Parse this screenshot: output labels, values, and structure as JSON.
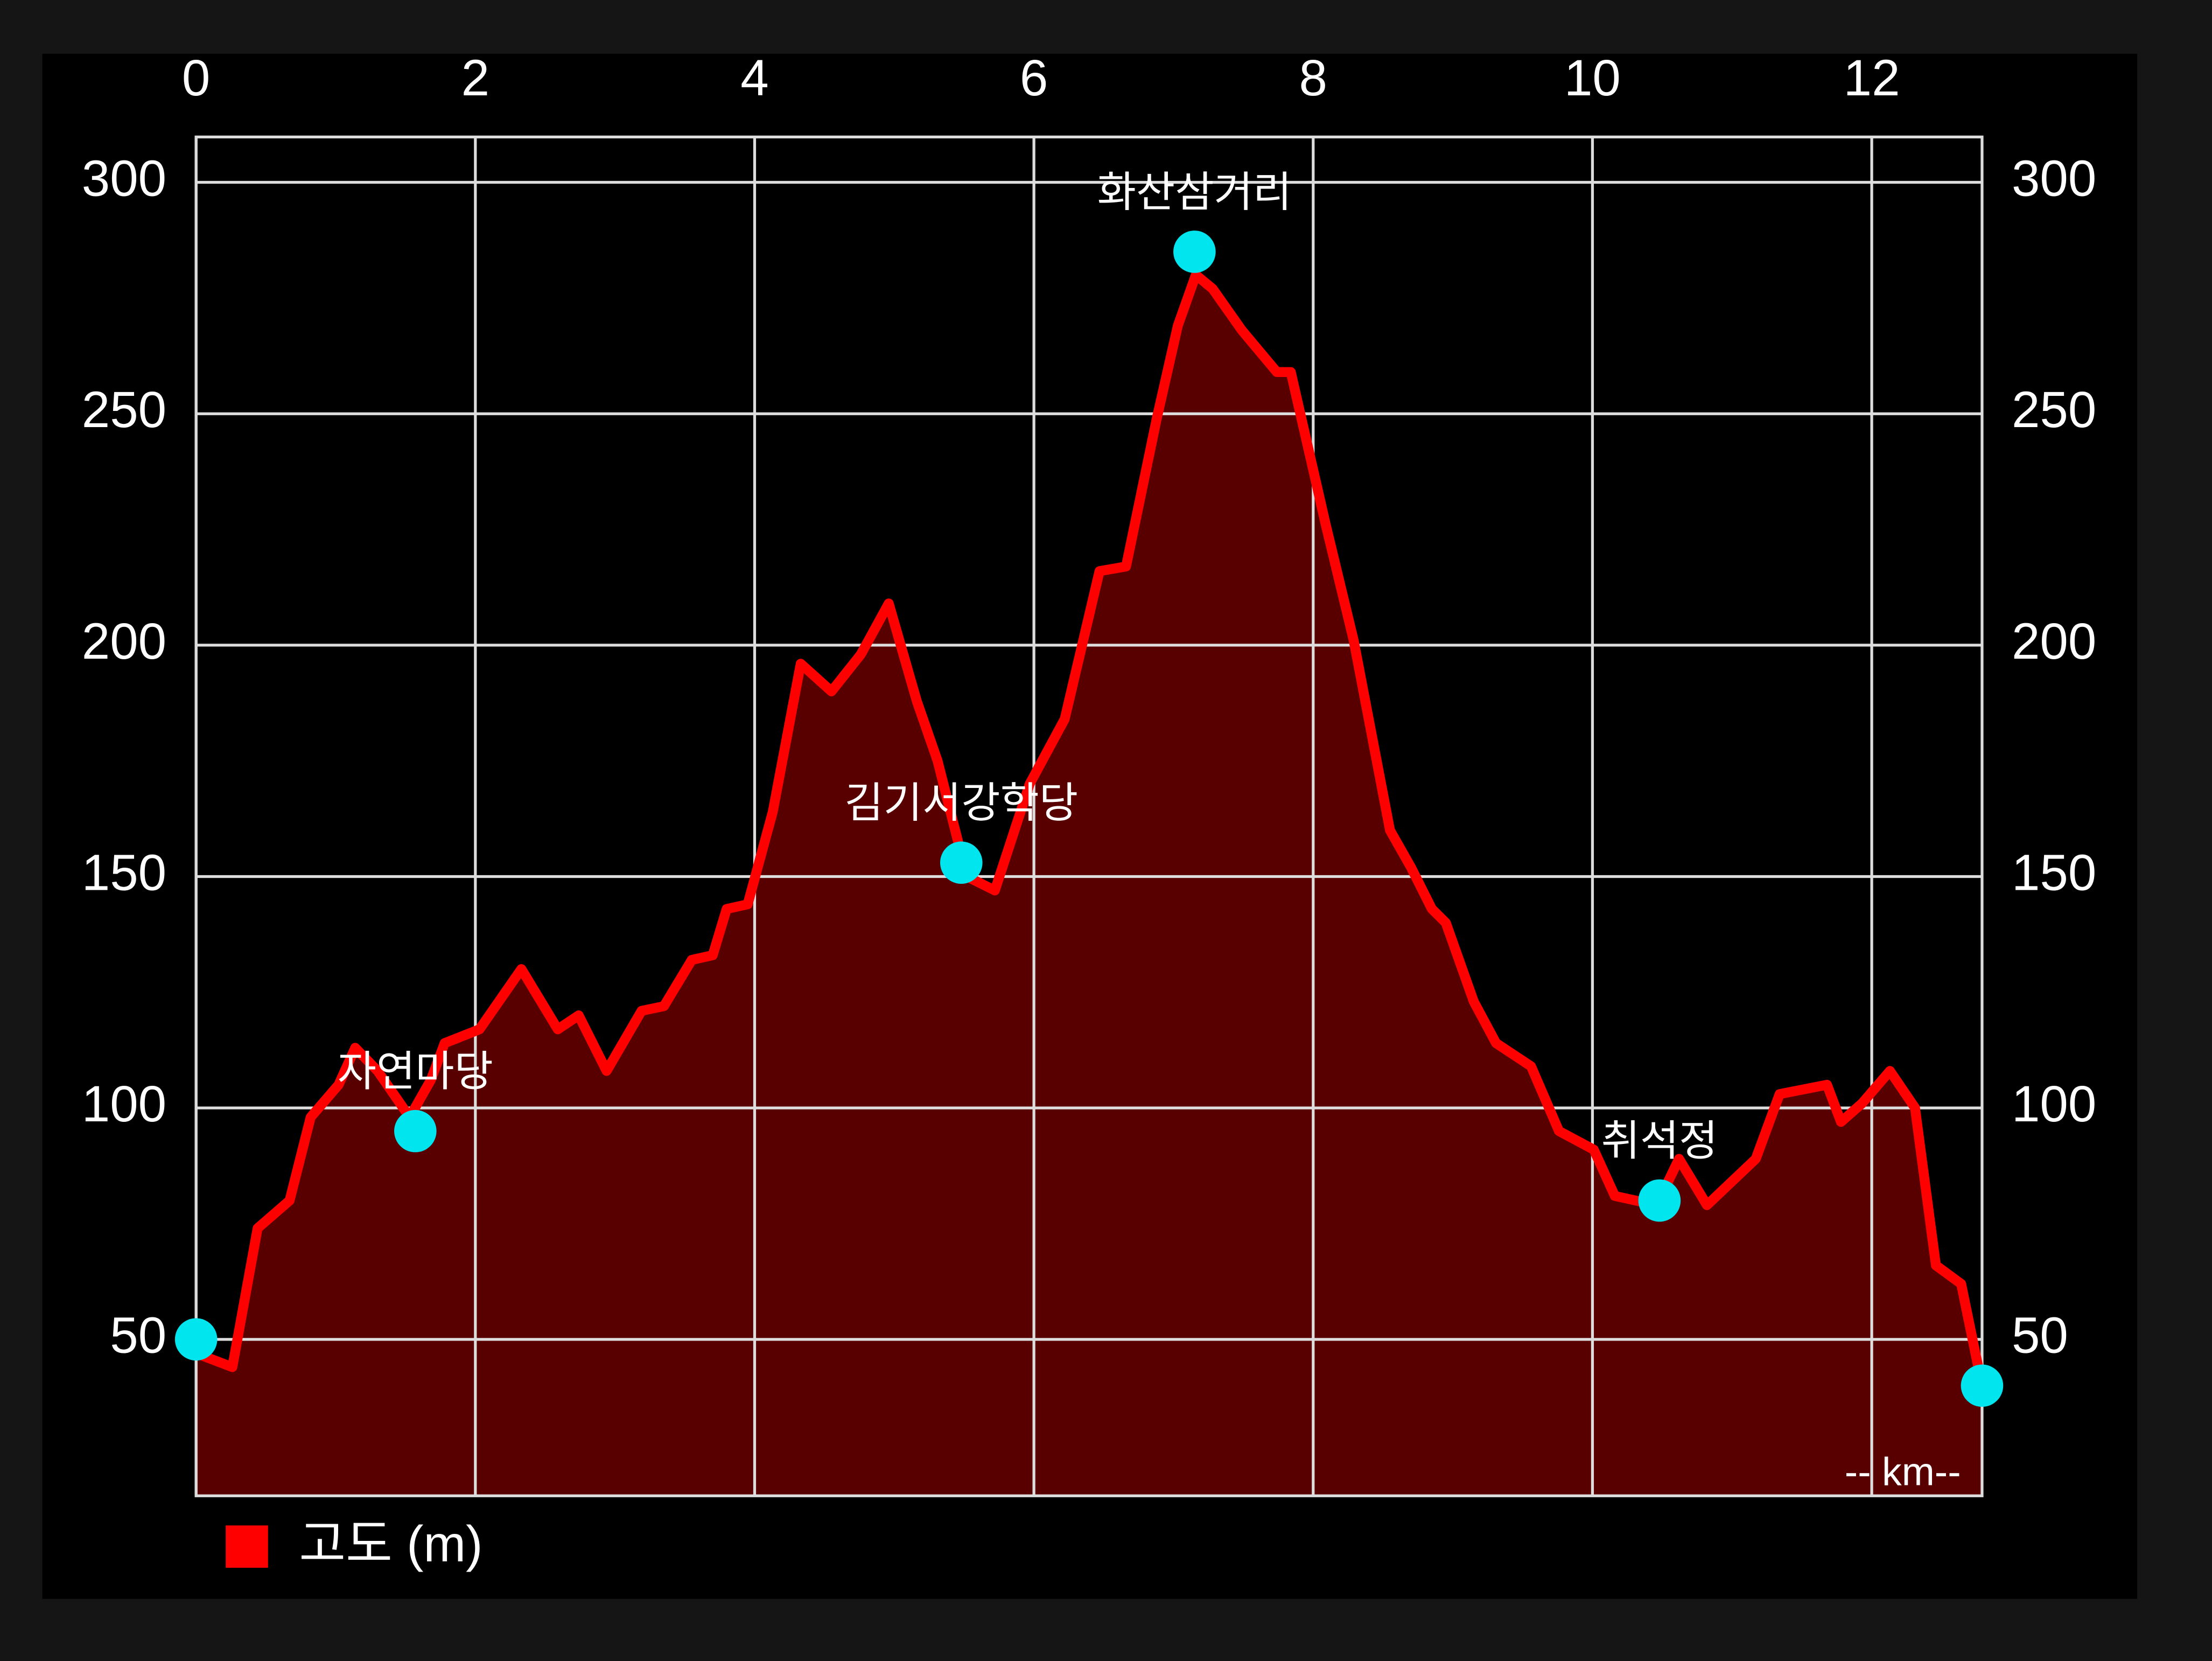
{
  "chart_data": {
    "type": "line",
    "xlim": [
      0,
      12.79
    ],
    "xticks": [
      0,
      2,
      4,
      6,
      8,
      10,
      12
    ],
    "ylim": [
      16.2,
      309.8
    ],
    "yticks": [
      50,
      100,
      150,
      200,
      250,
      300
    ],
    "y2lim": [
      16.2,
      309.8
    ],
    "y2ticks": [
      50,
      100,
      150,
      200,
      250,
      300
    ],
    "grid": true,
    "legend": "bottom-left",
    "x_unit_label": "-- km--",
    "series": [
      {
        "name": "고도 (m)",
        "color": "#ff0000",
        "fill": "#580000",
        "x": [
          0,
          0.26,
          0.44,
          0.67,
          0.82,
          1.02,
          1.14,
          1.3,
          1.53,
          1.68,
          1.78,
          2.03,
          2.33,
          2.59,
          2.74,
          2.94,
          3.19,
          3.35,
          3.55,
          3.7,
          3.8,
          3.95,
          4.13,
          4.33,
          4.55,
          4.76,
          4.96,
          5.16,
          5.31,
          5.52,
          5.72,
          5.97,
          6.22,
          6.47,
          6.66,
          6.88,
          7.03,
          7.16,
          7.28,
          7.49,
          7.74,
          7.84,
          8.09,
          8.29,
          8.55,
          8.7,
          8.85,
          8.95,
          9.15,
          9.31,
          9.56,
          9.76,
          10.01,
          10.16,
          10.46,
          10.62,
          10.82,
          11.17,
          11.34,
          11.68,
          11.78,
          11.93,
          12.13,
          12.31,
          12.46,
          12.64,
          12.79
        ],
        "values": [
          47,
          44,
          74,
          80,
          98,
          105,
          113,
          108,
          98,
          106,
          114,
          117,
          130,
          117,
          120,
          108,
          121,
          122,
          132,
          133,
          143,
          144,
          164,
          196,
          190,
          198,
          209,
          188,
          175,
          150,
          147,
          170,
          184,
          216,
          217,
          249,
          269,
          280,
          277,
          268,
          259,
          259,
          226,
          201,
          160,
          152,
          143,
          140,
          123,
          114,
          109,
          95,
          91,
          81,
          79,
          89,
          79,
          89,
          103,
          105,
          97,
          101,
          108,
          100,
          66,
          62,
          40
        ]
      }
    ],
    "waypoints": {
      "color": "#00e5ee",
      "x": [
        0,
        1.57,
        5.48,
        7.15,
        10.48,
        12.79
      ],
      "values": [
        50,
        95,
        153,
        285,
        80,
        40
      ],
      "labels": [
        null,
        "자연마당",
        "김기서강학당",
        "화산삼거리",
        "취석정",
        null
      ]
    }
  }
}
